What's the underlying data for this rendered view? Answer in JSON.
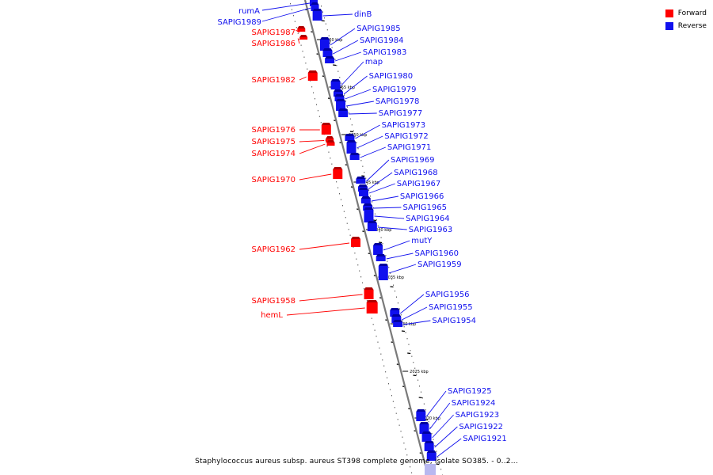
{
  "caption": "Staphylococcus aureus subsp. aureus ST398 complete genome, isolate SO385. - 0..2...",
  "legend": {
    "forward_label": "Forward",
    "forward_color": "#ff0000",
    "reverse_label": "Reverse",
    "reverse_color": "#1010ee"
  },
  "scale_ticks": [
    "2060 kbp",
    "2055 kbp",
    "2050 kbp",
    "2045 kbp",
    "2040 kbp",
    "2035 kbp",
    "2030 kbp",
    "2025 kbp",
    "2020 kbp"
  ],
  "forward_genes": [
    "SAPIG1987",
    "SAPIG1986",
    "SAPIG1982",
    "SAPIG1976",
    "SAPIG1975",
    "SAPIG1974",
    "SAPIG1970",
    "SAPIG1962",
    "SAPIG1958",
    "hemL"
  ],
  "left_reverse_genes": [
    "rumA",
    "SAPIG1989"
  ],
  "reverse_genes": [
    "dinB",
    "SAPIG1985",
    "SAPIG1984",
    "SAPIG1983",
    "map",
    "SAPIG1980",
    "SAPIG1979",
    "SAPIG1978",
    "SAPIG1977",
    "SAPIG1973",
    "SAPIG1972",
    "SAPIG1971",
    "SAPIG1969",
    "SAPIG1968",
    "SAPIG1967",
    "SAPIG1966",
    "SAPIG1965",
    "SAPIG1964",
    "SAPIG1963",
    "mutY",
    "SAPIG1960",
    "SAPIG1959",
    "SAPIG1956",
    "SAPIG1955",
    "SAPIG1954",
    "SAPIG1925",
    "SAPIG1924",
    "SAPIG1923",
    "SAPIG1922",
    "SAPIG1921"
  ]
}
